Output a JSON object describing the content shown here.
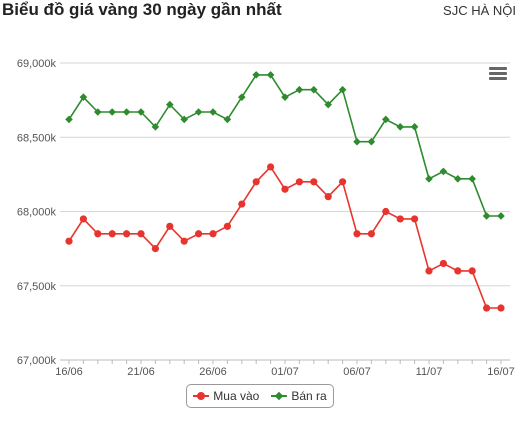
{
  "header": {
    "title": "Biểu đồ giá vàng 30 ngày gần nhất",
    "subtitle": "SJC HÀ NỘI"
  },
  "icons": {
    "menu": "hamburger-menu-icon"
  },
  "chart_data": {
    "type": "line",
    "title": "Biểu đồ giá vàng 30 ngày gần nhất",
    "subtitle": "SJC HÀ NỘI",
    "xlabel": "",
    "ylabel": "",
    "ylim": [
      67000,
      69000
    ],
    "yticks": [
      67000,
      67500,
      68000,
      68500,
      69000
    ],
    "ytick_labels": [
      "67,000k",
      "67,500k",
      "68,000k",
      "68,500k",
      "69,000k"
    ],
    "xtick_labels": [
      {
        "index": 0,
        "label": "16/06"
      },
      {
        "index": 5,
        "label": "21/06"
      },
      {
        "index": 10,
        "label": "26/06"
      },
      {
        "index": 15,
        "label": "01/07"
      },
      {
        "index": 20,
        "label": "06/07"
      },
      {
        "index": 25,
        "label": "11/07"
      },
      {
        "index": 30,
        "label": "16/07"
      }
    ],
    "x": [
      "16/06",
      "17/06",
      "18/06",
      "19/06",
      "20/06",
      "21/06",
      "22/06",
      "23/06",
      "24/06",
      "25/06",
      "26/06",
      "27/06",
      "28/06",
      "29/06",
      "30/06",
      "01/07",
      "02/07",
      "03/07",
      "04/07",
      "05/07",
      "06/07",
      "07/07",
      "08/07",
      "09/07",
      "10/07",
      "11/07",
      "12/07",
      "13/07",
      "14/07",
      "15/07",
      "16/07"
    ],
    "grid": true,
    "legend_position": "bottom-center",
    "series": [
      {
        "name": "Mua vào",
        "color": "#e8342e",
        "marker": "circle",
        "values": [
          67800,
          67950,
          67850,
          67850,
          67850,
          67850,
          67750,
          67900,
          67800,
          67850,
          67850,
          67900,
          68050,
          68200,
          68300,
          68150,
          68200,
          68200,
          68100,
          68200,
          67850,
          67850,
          68000,
          67950,
          67950,
          67600,
          67650,
          67600,
          67600,
          67350,
          67350
        ]
      },
      {
        "name": "Bán ra",
        "color": "#2e8b2e",
        "marker": "diamond",
        "values": [
          68620,
          68770,
          68670,
          68670,
          68670,
          68670,
          68570,
          68720,
          68620,
          68670,
          68670,
          68620,
          68770,
          68920,
          68920,
          68770,
          68820,
          68820,
          68720,
          68820,
          68470,
          68470,
          68620,
          68570,
          68570,
          68220,
          68270,
          68220,
          68220,
          67970,
          67970
        ]
      }
    ]
  }
}
